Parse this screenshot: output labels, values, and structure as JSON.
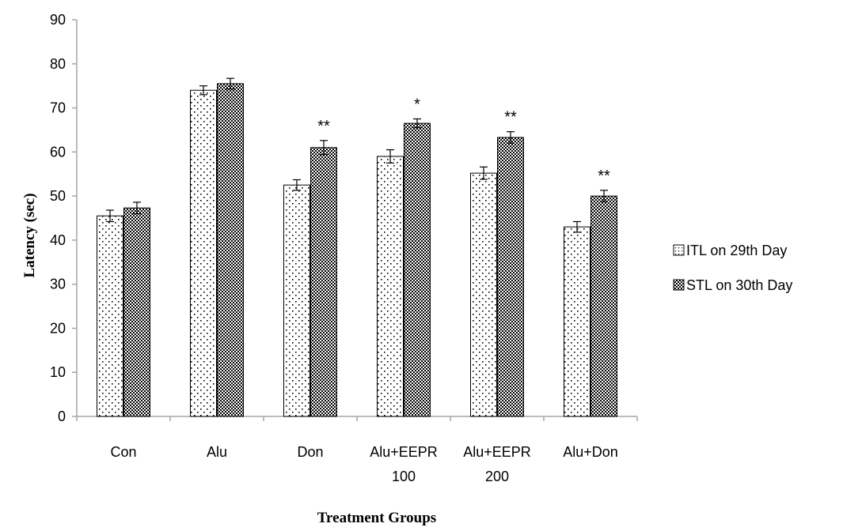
{
  "chart_data": {
    "type": "bar",
    "categories": [
      [
        "Con"
      ],
      [
        "Alu"
      ],
      [
        "Don"
      ],
      [
        "Alu+EEPR",
        "100"
      ],
      [
        "Alu+EEPR",
        "200"
      ],
      [
        "Alu+Don"
      ]
    ],
    "series": [
      {
        "name": "ITL on 29th  Day",
        "pattern": "sparse-dots",
        "values": [
          45.5,
          74.0,
          52.5,
          59.0,
          55.2,
          43.0
        ],
        "errors": [
          1.3,
          1.0,
          1.2,
          1.5,
          1.4,
          1.2
        ],
        "significance": [
          "",
          "",
          "",
          "",
          "",
          ""
        ]
      },
      {
        "name": "STL on 30th  Day",
        "pattern": "checker",
        "values": [
          47.3,
          75.5,
          61.0,
          66.5,
          63.3,
          50.0
        ],
        "errors": [
          1.3,
          1.2,
          1.6,
          1.0,
          1.3,
          1.3
        ],
        "significance": [
          "",
          "",
          "**",
          "*",
          "**",
          "**"
        ]
      }
    ],
    "xlabel": "Treatment Groups",
    "ylabel": "Latency (sec)",
    "ylim": [
      0,
      90
    ],
    "yticks": [
      0,
      10,
      20,
      30,
      40,
      50,
      60,
      70,
      80,
      90
    ],
    "grid": false,
    "legend_position": "right",
    "colors": {
      "bar_fill": "#ffffff",
      "pattern": "#000000",
      "axis": "#a6a6a6"
    }
  }
}
